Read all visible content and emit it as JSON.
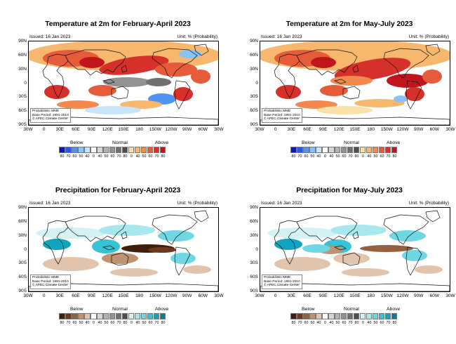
{
  "panels": [
    {
      "id": "temp_fma",
      "title": "Temperature at 2m for February-April 2023",
      "issued": "Issued: 16 Jan 2023",
      "unit": "Unit: % (Probability)",
      "info": [
        "Probabilistic MME",
        "Base Period: 1991-2010",
        "© APEC Climate Center"
      ],
      "kind": "temp",
      "season": "fma"
    },
    {
      "id": "temp_mjj",
      "title": "Temperature at 2m for May-July 2023",
      "issued": "Issued: 16 Jan 2023",
      "unit": "Unit: % (Probability)",
      "info": [
        "Probabilistic MME",
        "Base Period: 1991-2010",
        "© APEC Climate Center"
      ],
      "kind": "temp",
      "season": "mjj"
    },
    {
      "id": "prec_fma",
      "title": "Precipitation for February-April 2023",
      "issued": "Issued: 16 Jan 2023",
      "unit": "Unit: % (Probability)",
      "info": [
        "Probabilistic MME",
        "Base Period: 1991-2010",
        "© APEC Climate Center"
      ],
      "kind": "prec",
      "season": "fma"
    },
    {
      "id": "prec_mjj",
      "title": "Precipitation for May-July 2023",
      "issued": "Issued: 16 Jan 2023",
      "unit": "Unit: % (Probability)",
      "info": [
        "Probabilistic MME",
        "Base Period: 1991-2010",
        "© APEC Climate Center"
      ],
      "kind": "prec",
      "season": "mjj"
    }
  ],
  "axes": {
    "lat_labels": [
      "90N",
      "60N",
      "30N",
      "0",
      "30S",
      "60S",
      "90S"
    ],
    "lon_labels": [
      "30W",
      "0",
      "30E",
      "60E",
      "90E",
      "120E",
      "150E",
      "180",
      "150W",
      "120W",
      "90W",
      "60W",
      "30W"
    ]
  },
  "legend": {
    "categories": [
      "Below",
      "Normal",
      "Above"
    ],
    "ticks": [
      "80",
      "70",
      "60",
      "50",
      "40",
      "0",
      "40",
      "50",
      "60",
      "70",
      "80",
      "0",
      "40",
      "50",
      "60",
      "70",
      "80"
    ],
    "temp_colors": {
      "below": [
        "#0b16b8",
        "#2a55e6",
        "#4f94f2",
        "#8ac2f5",
        "#c6e4fa"
      ],
      "normal": [
        "#ffffff",
        "#d6d6d6",
        "#b4b4b4",
        "#929292",
        "#707070",
        "#4e4e4e"
      ],
      "above": [
        "#fbe0a8",
        "#f7b86d",
        "#f18a4c",
        "#e65b3a",
        "#d6302b",
        "#c0151c"
      ]
    },
    "prec_colors": {
      "below": [
        "#3f1e0c",
        "#6b3a1e",
        "#94603d",
        "#bf9271",
        "#e1c4ab"
      ],
      "normal": [
        "#ffffff",
        "#d6d6d6",
        "#b4b4b4",
        "#929292",
        "#707070",
        "#4e4e4e"
      ],
      "above": [
        "#d4f2f4",
        "#a6e8ee",
        "#6fd7e4",
        "#35c3d6",
        "#12a4bf",
        "#0a7c9a"
      ]
    }
  }
}
